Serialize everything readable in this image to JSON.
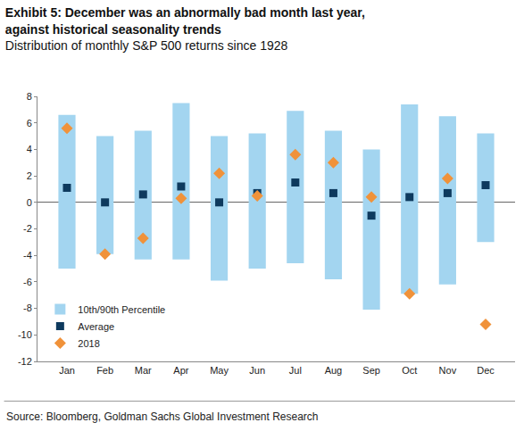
{
  "chart_data": {
    "type": "range_bar",
    "title": "Exhibit 5: December was an abnormally bad month last year, against historical seasonality trends",
    "subtitle": "Distribution of monthly S&P 500 returns since 1928",
    "source": "Source: Bloomberg, Goldman Sachs Global Investment Research",
    "categories": [
      "Jan",
      "Feb",
      "Mar",
      "Apr",
      "May",
      "Jun",
      "Jul",
      "Aug",
      "Sep",
      "Oct",
      "Nov",
      "Dec"
    ],
    "series": [
      {
        "name": "10th/90th Percentile",
        "type": "range_bar",
        "color": "#a3d5f0",
        "low": [
          -5.0,
          -3.9,
          -4.3,
          -4.3,
          -5.9,
          -5.0,
          -4.6,
          -5.8,
          -8.1,
          -6.9,
          -6.2,
          -3.0
        ],
        "high": [
          6.6,
          5.0,
          5.4,
          7.5,
          5.0,
          5.2,
          6.9,
          5.4,
          4.0,
          7.4,
          6.5,
          5.2
        ]
      },
      {
        "name": "Average",
        "type": "scatter",
        "marker": "square",
        "color": "#0e3a5e",
        "values": [
          1.1,
          0.0,
          0.6,
          1.2,
          0.0,
          0.7,
          1.5,
          0.7,
          -1.0,
          0.4,
          0.7,
          1.3
        ]
      },
      {
        "name": "2018",
        "type": "scatter",
        "marker": "diamond",
        "color": "#f0923a",
        "values": [
          5.6,
          -3.9,
          -2.7,
          0.3,
          2.2,
          0.5,
          3.6,
          3.0,
          0.4,
          -6.9,
          1.8,
          -9.2
        ]
      }
    ],
    "ylim": [
      -12,
      8
    ],
    "yticks": [
      -12,
      -10,
      -8,
      -6,
      -4,
      -2,
      0,
      2,
      4,
      6,
      8
    ],
    "grid": false,
    "legend": "bottom-left"
  }
}
